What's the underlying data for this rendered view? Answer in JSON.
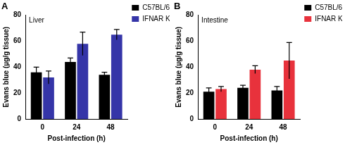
{
  "chart_data": [
    {
      "type": "bar",
      "title": "A",
      "subtitle": "Liver",
      "x_label": "Post-infection (h)",
      "y_label": "Evans blue (µg/g tissue)",
      "categories": [
        "0",
        "24",
        "48"
      ],
      "series": [
        {
          "name": "C57BL/6",
          "color": "#000000",
          "values": [
            36,
            44,
            34
          ],
          "errors": [
            4,
            3,
            2
          ]
        },
        {
          "name": "IFNAR KO",
          "color": "#3535a8",
          "values": [
            32,
            58,
            65
          ],
          "errors": [
            5,
            9,
            4
          ]
        }
      ],
      "ylim": [
        0,
        80
      ],
      "yticks": [
        0,
        20,
        40,
        60,
        80
      ],
      "grid": false,
      "legend": "right"
    },
    {
      "type": "bar",
      "title": "B",
      "subtitle": "Intestine",
      "x_label": "Post-infection (h)",
      "y_label": "Evans blue (µg/g tissue)",
      "categories": [
        "0",
        "24",
        "48"
      ],
      "series": [
        {
          "name": "C57BL/6",
          "color": "#000000",
          "values": [
            21,
            24,
            22
          ],
          "errors": [
            3,
            2,
            3
          ]
        },
        {
          "name": "IFNAR KO",
          "color": "#e8323c",
          "values": [
            23,
            38,
            45
          ],
          "errors": [
            2,
            3,
            14
          ]
        }
      ],
      "ylim": [
        0,
        80
      ],
      "yticks": [
        0,
        20,
        40,
        60,
        80
      ],
      "grid": false,
      "legend": "right"
    }
  ]
}
